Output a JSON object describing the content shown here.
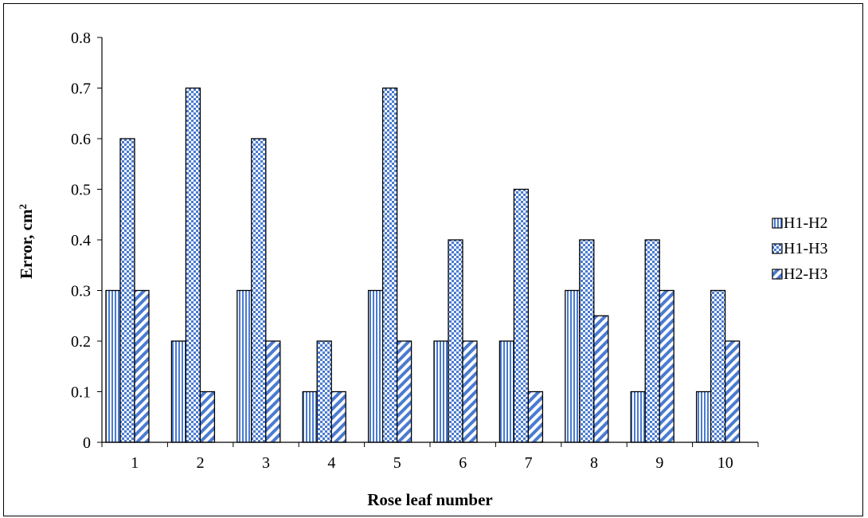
{
  "chart_data": {
    "type": "bar",
    "title": "",
    "xlabel": "Rose leaf number",
    "ylabel_main": "Error,  cm",
    "ylabel_superscript": "2",
    "ylim": [
      0,
      0.8
    ],
    "ytick_step": 0.1,
    "yticks": [
      "0",
      "0.1",
      "0.2",
      "0.3",
      "0.4",
      "0.5",
      "0.6",
      "0.7",
      "0.8"
    ],
    "categories": [
      "1",
      "2",
      "3",
      "4",
      "5",
      "6",
      "7",
      "8",
      "9",
      "10"
    ],
    "grid": false,
    "legend_position": "right",
    "series": [
      {
        "name": "H1-H2",
        "pattern": "vertical-stripes",
        "color": "#4a7bd0",
        "values": [
          0.3,
          0.2,
          0.3,
          0.1,
          0.3,
          0.2,
          0.2,
          0.3,
          0.1,
          0.1
        ]
      },
      {
        "name": "H1-H3",
        "pattern": "checkerboard",
        "color": "#4a7bd0",
        "values": [
          0.6,
          0.7,
          0.6,
          0.2,
          0.7,
          0.4,
          0.5,
          0.4,
          0.4,
          0.3
        ]
      },
      {
        "name": "H2-H3",
        "pattern": "diagonal-stripes",
        "color": "#4a7bd0",
        "values": [
          0.3,
          0.1,
          0.2,
          0.1,
          0.2,
          0.2,
          0.1,
          0.25,
          0.3,
          0.2
        ]
      }
    ]
  }
}
